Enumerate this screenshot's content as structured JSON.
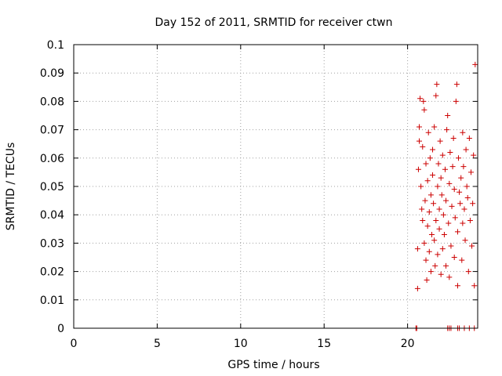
{
  "chart_data": {
    "type": "scatter",
    "title": "Day 152 of 2011, SRMTID for receiver ctwn",
    "xlabel": "GPS time / hours",
    "ylabel": "SRMTID / TECUs",
    "xlim": [
      0,
      24.2
    ],
    "ylim": [
      0,
      0.1
    ],
    "xticks": [
      0,
      5,
      10,
      15,
      20
    ],
    "xtick_labels": [
      "0",
      "5",
      "10",
      "15",
      "20"
    ],
    "yticks": [
      0,
      0.01,
      0.02,
      0.03,
      0.04,
      0.05,
      0.06,
      0.07,
      0.08,
      0.09,
      0.1
    ],
    "ytick_labels": [
      "0",
      "0.01",
      "0.02",
      "0.03",
      "0.04",
      "0.05",
      "0.06",
      "0.07",
      "0.08",
      "0.09",
      "0.1"
    ],
    "grid": true,
    "marker": "plus",
    "color": "#cc0000",
    "series": [
      {
        "points": [
          [
            20.5,
            0.0
          ],
          [
            20.55,
            0.0
          ],
          [
            22.4,
            0.0
          ],
          [
            22.5,
            0.0
          ],
          [
            22.6,
            0.0
          ],
          [
            23.0,
            0.0
          ],
          [
            23.1,
            0.0
          ],
          [
            23.4,
            0.0
          ],
          [
            23.7,
            0.0
          ],
          [
            24.0,
            0.0
          ],
          [
            20.6,
            0.014
          ],
          [
            20.6,
            0.028
          ],
          [
            20.65,
            0.056
          ],
          [
            20.7,
            0.066
          ],
          [
            20.7,
            0.071
          ],
          [
            20.75,
            0.081
          ],
          [
            20.8,
            0.05
          ],
          [
            20.85,
            0.042
          ],
          [
            20.9,
            0.038
          ],
          [
            20.9,
            0.064
          ],
          [
            20.95,
            0.08
          ],
          [
            21.0,
            0.077
          ],
          [
            21.0,
            0.03
          ],
          [
            21.05,
            0.045
          ],
          [
            21.1,
            0.058
          ],
          [
            21.1,
            0.024
          ],
          [
            21.15,
            0.017
          ],
          [
            21.2,
            0.052
          ],
          [
            21.2,
            0.036
          ],
          [
            21.25,
            0.069
          ],
          [
            21.3,
            0.041
          ],
          [
            21.3,
            0.027
          ],
          [
            21.35,
            0.06
          ],
          [
            21.4,
            0.047
          ],
          [
            21.4,
            0.02
          ],
          [
            21.45,
            0.033
          ],
          [
            21.5,
            0.063
          ],
          [
            21.5,
            0.054
          ],
          [
            21.55,
            0.044
          ],
          [
            21.6,
            0.031
          ],
          [
            21.6,
            0.071
          ],
          [
            21.65,
            0.022
          ],
          [
            21.7,
            0.038
          ],
          [
            21.7,
            0.082
          ],
          [
            21.75,
            0.086
          ],
          [
            21.8,
            0.05
          ],
          [
            21.8,
            0.026
          ],
          [
            21.85,
            0.058
          ],
          [
            21.9,
            0.042
          ],
          [
            21.9,
            0.035
          ],
          [
            21.95,
            0.066
          ],
          [
            22.0,
            0.019
          ],
          [
            22.0,
            0.053
          ],
          [
            22.05,
            0.047
          ],
          [
            22.1,
            0.028
          ],
          [
            22.1,
            0.061
          ],
          [
            22.15,
            0.04
          ],
          [
            22.2,
            0.033
          ],
          [
            22.25,
            0.056
          ],
          [
            22.3,
            0.022
          ],
          [
            22.3,
            0.045
          ],
          [
            22.35,
            0.07
          ],
          [
            22.4,
            0.075
          ],
          [
            22.45,
            0.037
          ],
          [
            22.5,
            0.051
          ],
          [
            22.5,
            0.018
          ],
          [
            22.55,
            0.062
          ],
          [
            22.6,
            0.029
          ],
          [
            22.65,
            0.043
          ],
          [
            22.7,
            0.057
          ],
          [
            22.75,
            0.067
          ],
          [
            22.8,
            0.025
          ],
          [
            22.8,
            0.049
          ],
          [
            22.85,
            0.039
          ],
          [
            22.9,
            0.08
          ],
          [
            22.95,
            0.086
          ],
          [
            23.0,
            0.015
          ],
          [
            23.0,
            0.034
          ],
          [
            23.05,
            0.06
          ],
          [
            23.1,
            0.048
          ],
          [
            23.15,
            0.044
          ],
          [
            23.2,
            0.053
          ],
          [
            23.25,
            0.024
          ],
          [
            23.3,
            0.069
          ],
          [
            23.3,
            0.037
          ],
          [
            23.35,
            0.057
          ],
          [
            23.4,
            0.042
          ],
          [
            23.45,
            0.031
          ],
          [
            23.5,
            0.063
          ],
          [
            23.55,
            0.05
          ],
          [
            23.6,
            0.046
          ],
          [
            23.65,
            0.02
          ],
          [
            23.7,
            0.067
          ],
          [
            23.75,
            0.038
          ],
          [
            23.8,
            0.055
          ],
          [
            23.85,
            0.029
          ],
          [
            23.9,
            0.044
          ],
          [
            23.95,
            0.061
          ],
          [
            24.0,
            0.015
          ],
          [
            24.05,
            0.093
          ]
        ]
      }
    ]
  }
}
